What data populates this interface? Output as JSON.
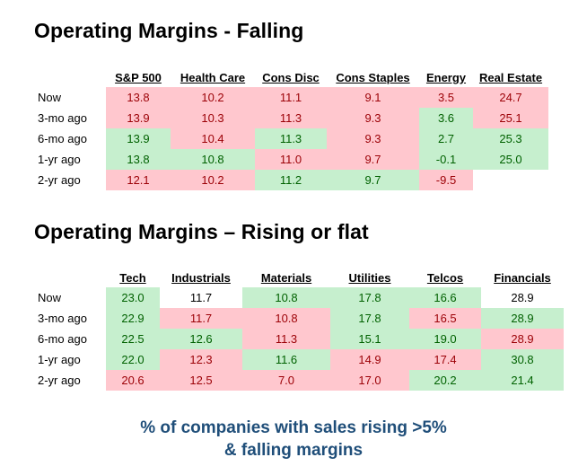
{
  "section1": {
    "title": "Operating Margins - Falling",
    "headers": [
      "S&P 500",
      "Health Care",
      "Cons Disc",
      "Cons Staples",
      "Energy",
      "Real Estate"
    ],
    "rows": [
      {
        "label": "Now",
        "values": [
          "13.8",
          "10.2",
          "11.1",
          "9.1",
          "3.5",
          "24.7"
        ],
        "status": [
          "neg",
          "neg",
          "neg",
          "neg",
          "neg",
          "neg"
        ]
      },
      {
        "label": "3-mo ago",
        "values": [
          "13.9",
          "10.3",
          "11.3",
          "9.3",
          "3.6",
          "25.1"
        ],
        "status": [
          "neg",
          "neg",
          "neg",
          "neg",
          "pos",
          "neg"
        ]
      },
      {
        "label": "6-mo ago",
        "values": [
          "13.9",
          "10.4",
          "11.3",
          "9.3",
          "2.7",
          "25.3"
        ],
        "status": [
          "pos",
          "neg",
          "pos",
          "neg",
          "pos",
          "pos"
        ]
      },
      {
        "label": "1-yr ago",
        "values": [
          "13.8",
          "10.8",
          "11.0",
          "9.7",
          "-0.1",
          "25.0"
        ],
        "status": [
          "pos",
          "pos",
          "neg",
          "neg",
          "pos",
          "pos"
        ]
      },
      {
        "label": "2-yr ago",
        "values": [
          "12.1",
          "10.2",
          "11.2",
          "9.7",
          "-9.5",
          ""
        ],
        "status": [
          "neg",
          "neg",
          "pos",
          "pos",
          "neg",
          "emp"
        ]
      }
    ]
  },
  "section2": {
    "title": "Operating Margins – Rising or flat",
    "headers": [
      "Tech",
      "Industrials",
      "Materials",
      "Utilities",
      "Telcos",
      "Financials"
    ],
    "rows": [
      {
        "label": "Now",
        "values": [
          "23.0",
          "11.7",
          "10.8",
          "17.8",
          "16.6",
          "28.9"
        ],
        "status": [
          "pos",
          "neu",
          "pos",
          "pos",
          "pos",
          "neu"
        ]
      },
      {
        "label": "3-mo ago",
        "values": [
          "22.9",
          "11.7",
          "10.8",
          "17.8",
          "16.5",
          "28.9"
        ],
        "status": [
          "pos",
          "neg",
          "neg",
          "pos",
          "neg",
          "pos"
        ]
      },
      {
        "label": "6-mo ago",
        "values": [
          "22.5",
          "12.6",
          "11.3",
          "15.1",
          "19.0",
          "28.9"
        ],
        "status": [
          "pos",
          "pos",
          "neg",
          "pos",
          "pos",
          "neg"
        ]
      },
      {
        "label": "1-yr ago",
        "values": [
          "22.0",
          "12.3",
          "11.6",
          "14.9",
          "17.4",
          "30.8"
        ],
        "status": [
          "pos",
          "neg",
          "pos",
          "neg",
          "neg",
          "pos"
        ]
      },
      {
        "label": "2-yr ago",
        "values": [
          "20.6",
          "12.5",
          "7.0",
          "17.0",
          "20.2",
          "21.4"
        ],
        "status": [
          "neg",
          "neg",
          "neg",
          "neg",
          "pos",
          "pos"
        ]
      }
    ]
  },
  "footer": {
    "line1": "% of companies with sales rising >5%",
    "line2": "& falling margins"
  },
  "colors": {
    "negative_fill": "#ffc7ce",
    "negative_text": "#9c0006",
    "positive_fill": "#c6efce",
    "positive_text": "#006100",
    "footer_text": "#1f4e79"
  }
}
